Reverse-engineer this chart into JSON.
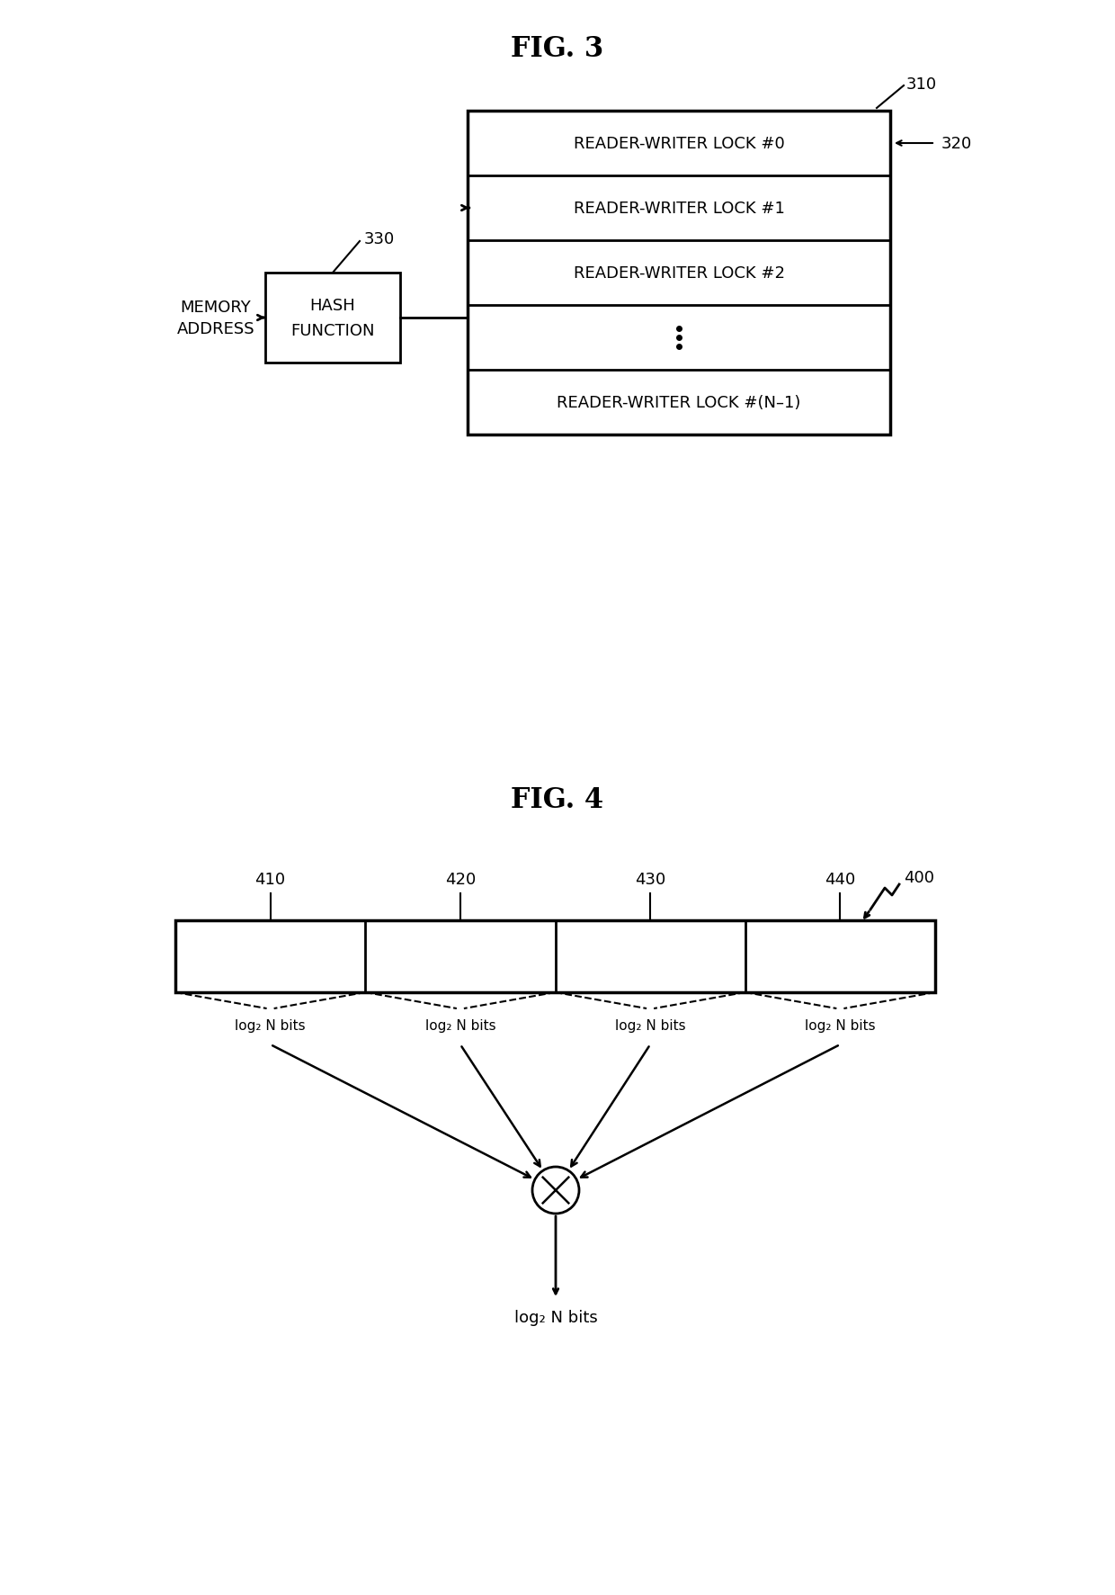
{
  "fig_title1": "FIG. 3",
  "fig_title2": "FIG. 4",
  "fig3": {
    "memory_label": [
      "MEMORY",
      "ADDRESS"
    ],
    "hash_label": [
      "HASH",
      "FUNCTION"
    ],
    "hash_ref": "330",
    "table_ref": "310",
    "lock_ref": "320",
    "locks": [
      "READER-WRITER LOCK #0",
      "READER-WRITER LOCK #1",
      "READER-WRITER LOCK #2",
      "READER-WRITER LOCK #(N–1)"
    ]
  },
  "fig4": {
    "block_refs": [
      "410",
      "420",
      "430",
      "440"
    ],
    "xor_ref": "400",
    "bit_labels": [
      "log₂ N bits",
      "log₂ N bits",
      "log₂ N bits",
      "log₂ N bits"
    ],
    "output_label": "log₂ N bits"
  },
  "bg_color": "#ffffff",
  "line_color": "#000000",
  "text_color": "#000000",
  "fontsize_title": 22,
  "fontsize_label": 13,
  "fontsize_ref": 13
}
